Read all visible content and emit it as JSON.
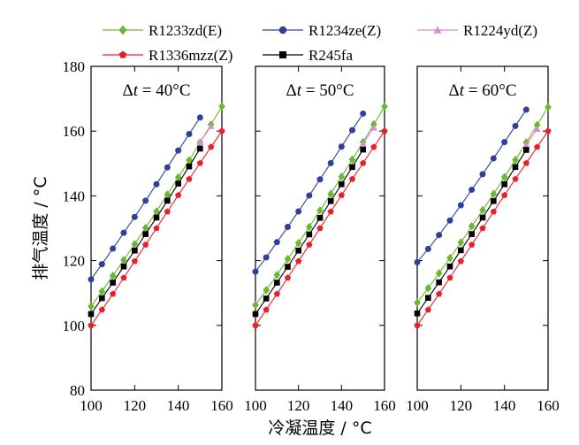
{
  "chart_data": {
    "type": "line",
    "xlabel": "冷凝温度 / °C",
    "ylabel": "排气温度 / °C",
    "xlim": [
      100,
      160
    ],
    "ylim": [
      80,
      180
    ],
    "x_ticks": [
      100,
      120,
      140,
      160
    ],
    "y_ticks": [
      80,
      100,
      120,
      140,
      160,
      180
    ],
    "legend_position": "top",
    "grid": false,
    "series_styles": [
      {
        "name": "R1233zd(E)",
        "color": "#6ab82d",
        "marker": "diamond"
      },
      {
        "name": "R1234ze(Z)",
        "color": "#2f3f9e",
        "marker": "circle"
      },
      {
        "name": "R1224yd(Z)",
        "color": "#d98bd6",
        "marker": "triangle"
      },
      {
        "name": "R1336mzz(Z)",
        "color": "#e8202a",
        "marker": "pentagon"
      },
      {
        "name": "R245fa",
        "color": "#000000",
        "marker": "square"
      }
    ],
    "panels": [
      {
        "annotation_prefix": "Δ",
        "annotation_var": "t",
        "annotation_value": " = 40°C",
        "series": [
          {
            "name": "R1233zd(E)",
            "x": [
              100,
              105,
              110,
              115,
              120,
              125,
              130,
              135,
              140,
              145,
              150,
              155,
              160
            ],
            "y": [
              105.9,
              110.5,
              115.3,
              120.2,
              125.1,
              130.1,
              135.2,
              140.4,
              145.7,
              151.0,
              156.5,
              162.0,
              167.6
            ]
          },
          {
            "name": "R1234ze(Z)",
            "x": [
              100,
              105,
              110,
              115,
              120,
              125,
              130,
              135,
              140,
              145,
              150
            ],
            "y": [
              114.2,
              118.9,
              123.7,
              128.6,
              133.5,
              138.5,
              143.6,
              148.8,
              154.0,
              159.1,
              164.2
            ]
          },
          {
            "name": "R1224yd(Z)",
            "x": [
              150,
              155
            ],
            "y": [
              156.5,
              161.5
            ]
          },
          {
            "name": "R1336mzz(Z)",
            "x": [
              100,
              105,
              110,
              115,
              120,
              125,
              130,
              135,
              140,
              145,
              150,
              155,
              160
            ],
            "y": [
              100.0,
              104.8,
              109.7,
              114.7,
              119.8,
              124.9,
              130.0,
              135.1,
              140.2,
              145.2,
              150.1,
              155.1,
              160.0
            ]
          },
          {
            "name": "R245fa",
            "x": [
              100,
              105,
              110,
              115,
              120,
              125,
              130,
              135,
              140,
              145,
              150
            ],
            "y": [
              103.5,
              108.4,
              113.2,
              118.2,
              123.1,
              128.2,
              133.3,
              138.5,
              143.8,
              149.1,
              154.6
            ]
          }
        ]
      },
      {
        "annotation_prefix": "Δ",
        "annotation_var": "t",
        "annotation_value": " = 50°C",
        "series": [
          {
            "name": "R1233zd(E)",
            "x": [
              100,
              105,
              110,
              115,
              120,
              125,
              130,
              135,
              140,
              145,
              150,
              155,
              160
            ],
            "y": [
              106.3,
              110.9,
              115.6,
              120.5,
              125.4,
              130.4,
              135.5,
              140.6,
              145.9,
              151.2,
              156.6,
              162.1,
              167.6
            ]
          },
          {
            "name": "R1234ze(Z)",
            "x": [
              100,
              105,
              110,
              115,
              120,
              125,
              130,
              135,
              140,
              145,
              150
            ],
            "y": [
              116.6,
              121.0,
              125.7,
              130.4,
              135.2,
              140.1,
              145.1,
              150.1,
              155.2,
              160.3,
              165.4
            ]
          },
          {
            "name": "R1224yd(Z)",
            "x": [
              150,
              155
            ],
            "y": [
              156.1,
              161.0
            ]
          },
          {
            "name": "R1336mzz(Z)",
            "x": [
              100,
              105,
              110,
              115,
              120,
              125,
              130,
              135,
              140,
              145,
              150,
              155,
              160
            ],
            "y": [
              100.0,
              104.8,
              109.7,
              114.7,
              119.8,
              124.9,
              130.0,
              135.1,
              140.2,
              145.2,
              150.1,
              155.1,
              160.0
            ]
          },
          {
            "name": "R245fa",
            "x": [
              100,
              105,
              110,
              115,
              120,
              125,
              130,
              135,
              140,
              145,
              150
            ],
            "y": [
              103.5,
              108.3,
              113.2,
              118.1,
              123.1,
              128.1,
              133.2,
              138.4,
              143.6,
              148.9,
              154.3
            ]
          }
        ]
      },
      {
        "annotation_prefix": "Δ",
        "annotation_var": "t",
        "annotation_value": " = 60°C",
        "series": [
          {
            "name": "R1233zd(E)",
            "x": [
              100,
              105,
              110,
              115,
              120,
              125,
              130,
              135,
              140,
              145,
              150,
              155,
              160
            ],
            "y": [
              107.0,
              111.5,
              116.1,
              120.8,
              125.6,
              130.6,
              135.6,
              140.6,
              145.8,
              151.1,
              156.5,
              161.9,
              167.4
            ]
          },
          {
            "name": "R1234ze(Z)",
            "x": [
              100,
              105,
              110,
              115,
              120,
              125,
              130,
              135,
              140,
              145,
              150
            ],
            "y": [
              119.5,
              123.6,
              127.9,
              132.4,
              137.1,
              141.9,
              146.7,
              151.6,
              156.6,
              161.6,
              166.6
            ]
          },
          {
            "name": "R1224yd(Z)",
            "x": [
              150,
              155
            ],
            "y": [
              155.8,
              160.6
            ]
          },
          {
            "name": "R1336mzz(Z)",
            "x": [
              100,
              105,
              110,
              115,
              120,
              125,
              130,
              135,
              140,
              145,
              150,
              155,
              160
            ],
            "y": [
              100.0,
              104.8,
              109.7,
              114.7,
              119.8,
              124.9,
              130.0,
              135.1,
              140.2,
              145.2,
              150.1,
              155.1,
              160.0
            ]
          },
          {
            "name": "R245fa",
            "x": [
              100,
              105,
              110,
              115,
              120,
              125,
              130,
              135,
              140,
              145,
              150
            ],
            "y": [
              103.7,
              108.5,
              113.3,
              118.2,
              123.2,
              128.2,
              133.3,
              138.4,
              143.6,
              148.9,
              154.2
            ]
          }
        ]
      }
    ]
  }
}
